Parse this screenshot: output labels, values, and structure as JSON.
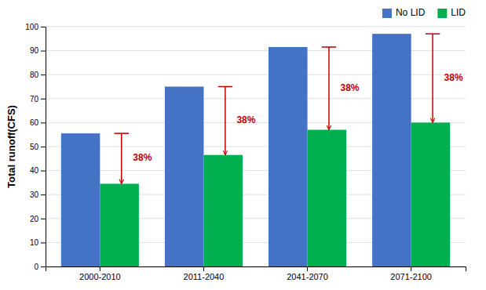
{
  "chart_data": {
    "type": "bar",
    "ylabel": "Total runoff(CFS)",
    "categories": [
      "2000-2010",
      "2011-2040",
      "2041-2070",
      "2071-2100"
    ],
    "series": [
      {
        "name": "No LID",
        "color": "#4472C4",
        "values": [
          55.5,
          75,
          91.5,
          97
        ]
      },
      {
        "name": "LID",
        "color": "#00B050",
        "values": [
          34.5,
          46.5,
          57,
          60
        ]
      }
    ],
    "annotations": [
      {
        "text": "38%",
        "color": "#C00000"
      },
      {
        "text": "38%",
        "color": "#C00000"
      },
      {
        "text": "38%",
        "color": "#C00000"
      },
      {
        "text": "38%",
        "color": "#C00000"
      }
    ],
    "ylim": [
      0,
      100
    ],
    "yticks": [
      0,
      10,
      20,
      30,
      40,
      50,
      60,
      70,
      80,
      90,
      100
    ],
    "grid": true,
    "legend": "upper right"
  }
}
